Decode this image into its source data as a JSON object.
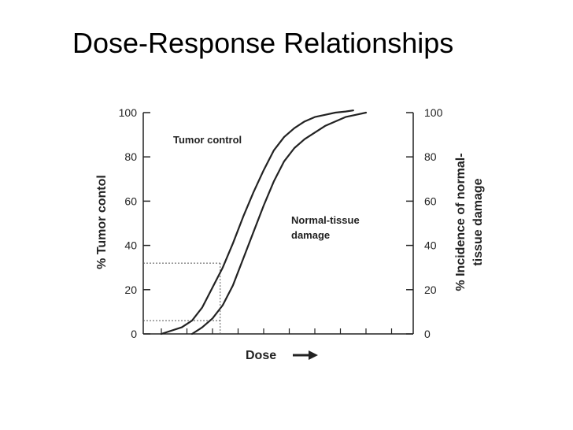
{
  "page": {
    "title": "Dose-Response Relationships"
  },
  "chart_data": {
    "type": "line",
    "xlabel": "Dose",
    "ylabel": "% Tumor contol",
    "y2label": [
      "% Incidence of normal-",
      "tissue damage"
    ],
    "ylim": [
      0,
      100
    ],
    "y_ticks": [
      "0",
      "20",
      "40",
      "60",
      "80",
      "100"
    ],
    "y2_ticks": [
      "0",
      "20",
      "40",
      "60",
      "80",
      "100"
    ],
    "xlim": [
      0,
      100
    ],
    "grid": false,
    "annotations": [
      "Tumor control",
      "Normal-tissue",
      "damage"
    ],
    "series": [
      {
        "name": "Tumor control",
        "color": "#222222",
        "x": [
          0,
          8,
          12,
          16,
          20,
          24,
          28,
          32,
          36,
          40,
          44,
          48,
          52,
          56,
          60,
          64,
          68,
          72,
          75
        ],
        "y": [
          0,
          3,
          6,
          12,
          21,
          30,
          41,
          53,
          64,
          74,
          83,
          89,
          93,
          96,
          98,
          99,
          100,
          100.5,
          101
        ]
      },
      {
        "name": "Normal-tissue damage",
        "color": "#222222",
        "x": [
          12,
          16,
          20,
          24,
          28,
          32,
          36,
          40,
          44,
          48,
          52,
          56,
          60,
          64,
          68,
          72,
          76,
          80
        ],
        "y": [
          0,
          3,
          7,
          13,
          22,
          34,
          46,
          58,
          69,
          78,
          84,
          88,
          91,
          94,
          96,
          98,
          99,
          100
        ]
      }
    ],
    "reference_lines": [
      {
        "y": 32,
        "x_end": 23
      },
      {
        "y": 6,
        "x_end": 23
      }
    ]
  }
}
